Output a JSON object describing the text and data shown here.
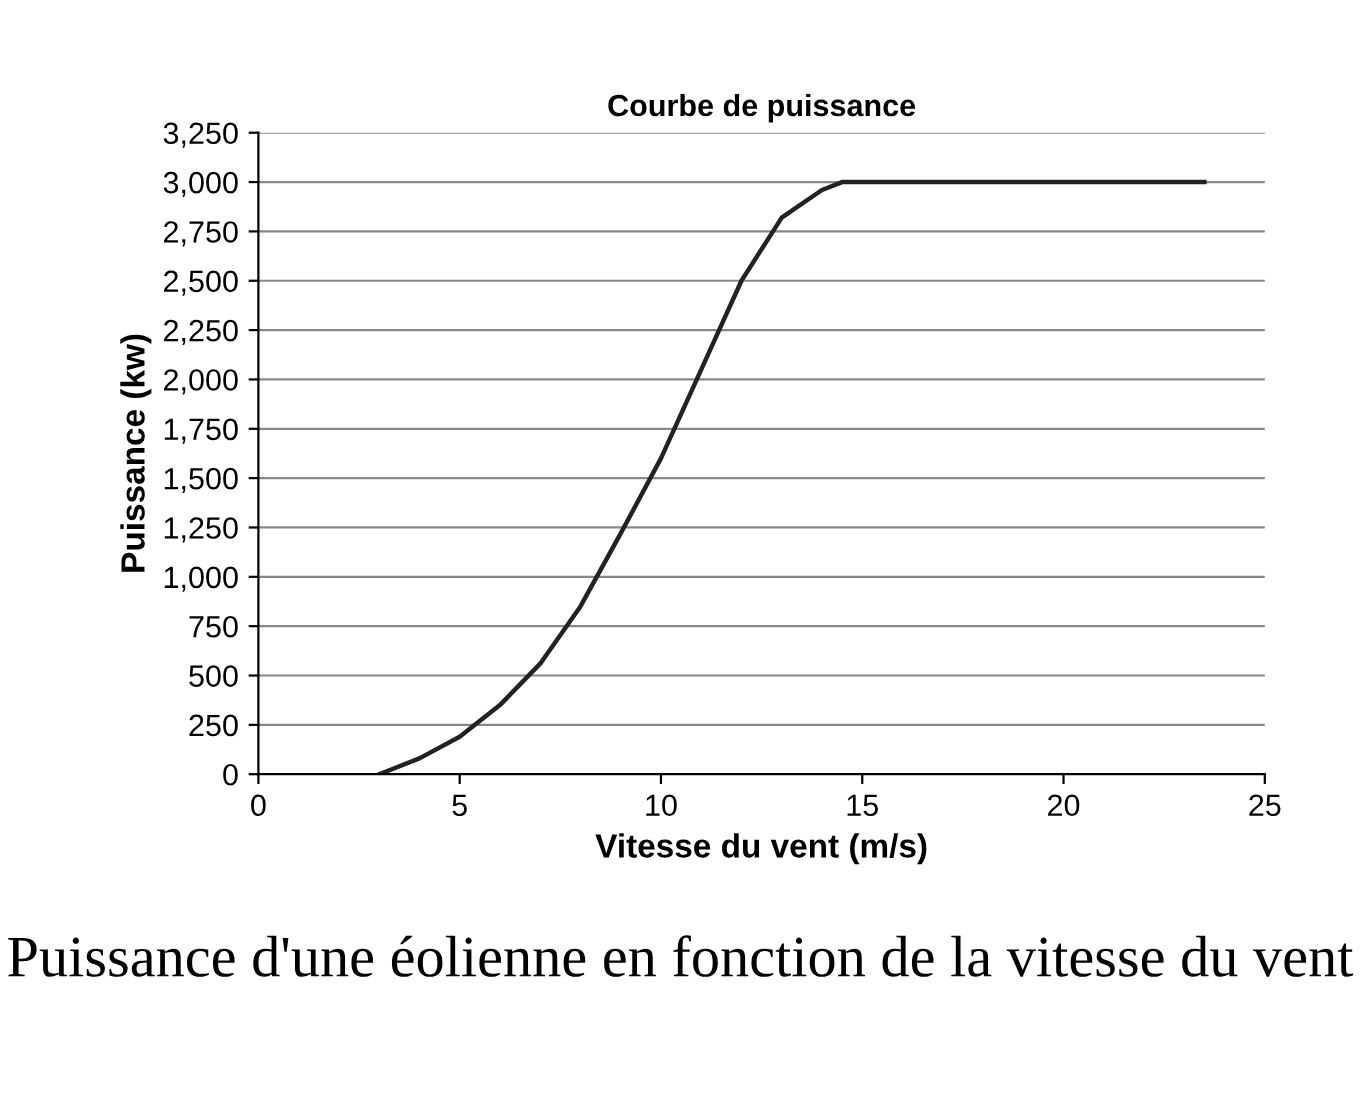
{
  "chart_data": {
    "type": "line",
    "title": "Courbe de puissance",
    "xlabel": "Vitesse du vent (m/s)",
    "ylabel": "Puissance (kw)",
    "x": [
      3,
      4,
      5,
      6,
      7,
      8,
      9,
      10,
      11,
      12,
      13,
      14,
      14.5,
      15,
      20,
      23.5
    ],
    "series": [
      {
        "color": "#222222",
        "values": [
          0,
          80,
          190,
          350,
          560,
          850,
          1220,
          1600,
          2050,
          2500,
          2820,
          2960,
          3000,
          3000,
          3000,
          3000
        ]
      }
    ],
    "xlim": [
      0,
      25
    ],
    "xticks": [
      0,
      5,
      10,
      15,
      20,
      25
    ],
    "ylim": [
      0,
      3250
    ],
    "yticks": [
      0,
      250,
      500,
      750,
      {
        "value": 1000,
        "label": "1,000"
      },
      {
        "value": 1250,
        "label": "1,250"
      },
      {
        "value": 1500,
        "label": "1,500"
      },
      {
        "value": 1750,
        "label": "1,750"
      },
      {
        "value": 2000,
        "label": "2,000"
      },
      {
        "value": 2250,
        "label": "2,250"
      },
      {
        "value": 2500,
        "label": "2,500"
      },
      {
        "value": 2750,
        "label": "2,750"
      },
      {
        "value": 3000,
        "label": "3,000"
      },
      {
        "value": 3250,
        "label": "3,250"
      }
    ],
    "grid": "y",
    "marker": "none",
    "line_style": "solid",
    "annotations": [
      "Puissance d'une éolienne en fonction de la vitesse du vent"
    ]
  }
}
